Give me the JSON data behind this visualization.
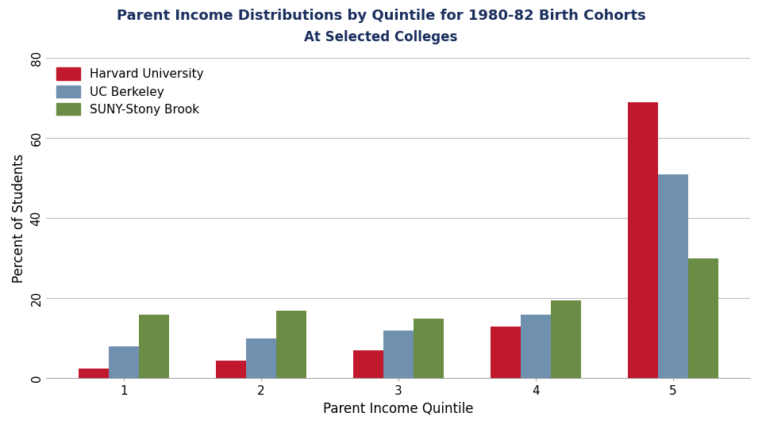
{
  "title_line1": "Parent Income Distributions by Quintile for 1980-82 Birth Cohorts",
  "title_line2": "At Selected Colleges",
  "xlabel": "Parent Income Quintile",
  "ylabel": "Percent of Students",
  "quintiles": [
    1,
    2,
    3,
    4,
    5
  ],
  "series": [
    {
      "name": "Harvard University",
      "color": "#c0182c",
      "values": [
        2.5,
        4.5,
        7.0,
        13.0,
        69.0
      ]
    },
    {
      "name": "UC Berkeley",
      "color": "#7090b0",
      "values": [
        8.0,
        10.0,
        12.0,
        16.0,
        51.0
      ]
    },
    {
      "name": "SUNY-Stony Brook",
      "color": "#6b8c45",
      "values": [
        16.0,
        17.0,
        15.0,
        19.5,
        30.0
      ]
    }
  ],
  "ylim": [
    0,
    80
  ],
  "yticks": [
    0,
    20,
    40,
    60,
    80
  ],
  "background_color": "#ffffff",
  "grid_color": "#c0c0c0",
  "title_color": "#1a2f5e",
  "bar_width": 0.22,
  "title_fontsize": 13,
  "subtitle_fontsize": 12,
  "axis_label_fontsize": 12,
  "tick_fontsize": 11,
  "legend_fontsize": 11
}
